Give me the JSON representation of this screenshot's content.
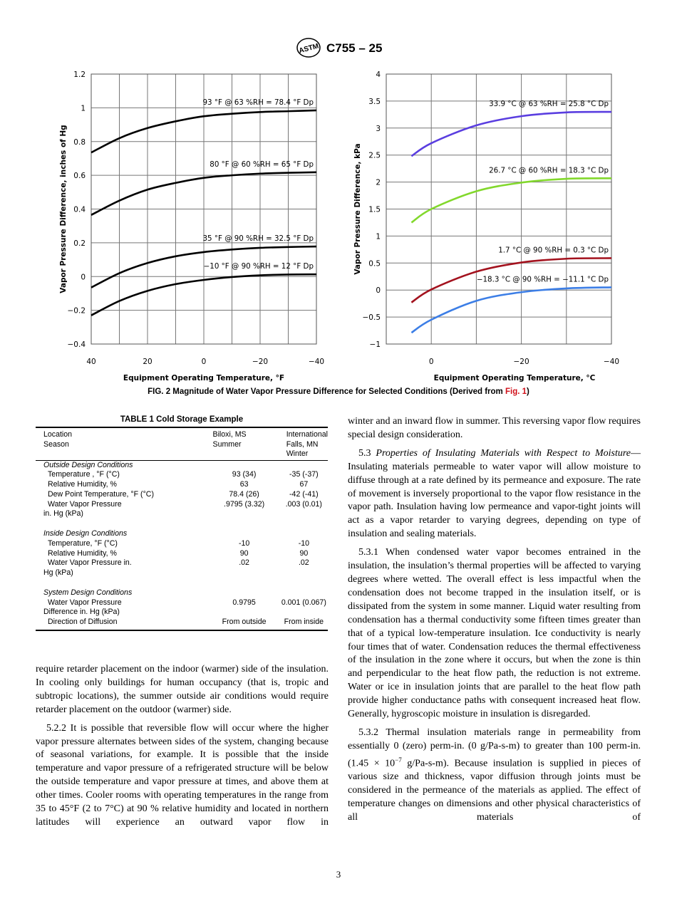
{
  "header": {
    "doc_id": "C755 – 25",
    "logo_text": "ASTM"
  },
  "figure": {
    "caption_a": "FIG. 2 Magnitude of Water Vapor Pressure Difference for Selected Conditions (Derived from ",
    "caption_link": "Fig. 1",
    "caption_b": ")"
  },
  "chart_data": [
    {
      "type": "line",
      "xlabel": "Equipment Operating Temperature, °F",
      "ylabel": "Vapor Pressure Difference, inches of Hg",
      "xlim": [
        40,
        -40
      ],
      "ylim": [
        -0.4,
        1.2
      ],
      "xticks": [
        "40",
        "20",
        "0",
        "−20",
        "−40"
      ],
      "xtick_values": [
        40,
        20,
        0,
        -20,
        -40
      ],
      "yticks": [
        "1.2",
        "1",
        "0.8",
        "0.6",
        "0.4",
        "0.2",
        "0",
        "−0.2",
        "−0.4"
      ],
      "ytick_values": [
        1.2,
        1,
        0.8,
        0.6,
        0.4,
        0.2,
        0,
        -0.2,
        -0.4
      ],
      "grid": true,
      "x": [
        40,
        30,
        20,
        10,
        0,
        -10,
        -20,
        -30,
        -40
      ],
      "series": [
        {
          "name": "93 °F @ 63 %RH = 78.4 °F Dp",
          "color": "#000000",
          "values": [
            0.735,
            0.82,
            0.88,
            0.92,
            0.95,
            0.965,
            0.975,
            0.98,
            0.985
          ]
        },
        {
          "name": "80 °F @ 60 %RH = 65 °F Dp",
          "color": "#000000",
          "values": [
            0.365,
            0.45,
            0.515,
            0.555,
            0.585,
            0.6,
            0.61,
            0.615,
            0.618
          ]
        },
        {
          "name": "35 °F @ 90 %RH = 32.5 °F Dp",
          "color": "#000000",
          "values": [
            -0.065,
            0.02,
            0.08,
            0.12,
            0.145,
            0.16,
            0.17,
            0.175,
            0.178
          ]
        },
        {
          "name": "−10 °F @ 90 %RH = 12 °F Dp",
          "color": "#000000",
          "values": [
            -0.23,
            -0.145,
            -0.085,
            -0.045,
            -0.02,
            -0.003,
            0.007,
            0.012,
            0.013
          ]
        }
      ]
    },
    {
      "type": "line",
      "xlabel": "Equipment Operating Temperature, °C",
      "ylabel": "Vapor Pressure Difference, kPa",
      "xlim": [
        10,
        -40
      ],
      "ylim": [
        -1,
        4
      ],
      "xticks": [
        "0",
        "−20",
        "−40"
      ],
      "xtick_values": [
        0,
        -20,
        -40
      ],
      "yticks": [
        "4",
        "3.5",
        "3",
        "2.5",
        "2",
        "1.5",
        "1",
        "0.5",
        "0",
        "−0.5",
        "−1"
      ],
      "ytick_values": [
        4,
        3.5,
        3,
        2.5,
        2,
        1.5,
        1,
        0.5,
        0,
        -0.5,
        -1
      ],
      "grid": true,
      "x": [
        4.4,
        0,
        -10,
        -20,
        -30,
        -40
      ],
      "series": [
        {
          "name": "33.9 °C @ 63 %RH = 25.8 °C Dp",
          "color": "#5a3ee0",
          "values": [
            2.48,
            2.72,
            3.05,
            3.22,
            3.29,
            3.3
          ]
        },
        {
          "name": "26.7 °C @ 60 %RH = 18.3 °C Dp",
          "color": "#82d82c",
          "values": [
            1.25,
            1.5,
            1.83,
            1.99,
            2.06,
            2.07
          ]
        },
        {
          "name": "1.7 °C @ 90 %RH = 0.3 °C Dp",
          "color": "#a3121e",
          "values": [
            -0.23,
            0.01,
            0.34,
            0.51,
            0.58,
            0.59
          ]
        },
        {
          "name": "−18.3 °C @ 90 %RH = −11.1 °C Dp",
          "color": "#3c7ee6",
          "values": [
            -0.79,
            -0.55,
            -0.2,
            -0.04,
            0.03,
            0.05
          ]
        }
      ]
    }
  ],
  "table": {
    "title": "TABLE 1 Cold Storage Example",
    "header": {
      "label1": "Location",
      "label2": "Season",
      "c2_1": "Biloxi, MS",
      "c2_2": "Summer",
      "c3_1": "International",
      "c3_2": "Falls, MN",
      "c3_3": "Winter"
    },
    "sections": [
      {
        "title": "Outside Design Conditions",
        "rows": [
          {
            "label": "Temperature , °F (°C)",
            "c2": "93 (34)",
            "c3": "-35 (-37)"
          },
          {
            "label": "Relative Humidity, %",
            "c2": "63",
            "c3": "67"
          },
          {
            "label": "Dew Point Temperature, °F (°C)",
            "c2": "78.4 (26)",
            "c3": "-42 (-41)"
          },
          {
            "label": "Water Vapor Pressure",
            "label2": "in. Hg (kPa)",
            "c2": ".9795 (3.32)",
            "c3": ".003 (0.01)"
          }
        ]
      },
      {
        "title": "Inside Design Conditions",
        "rows": [
          {
            "label": "Temperature, °F (°C)",
            "c2": "-10",
            "c3": "-10"
          },
          {
            "label": "Relative Humidity, %",
            "c2": "90",
            "c3": "90"
          },
          {
            "label": "Water Vapor Pressure in.",
            "label2": "Hg (kPa)",
            "c2": ".02",
            "c3": ".02"
          }
        ]
      },
      {
        "title": "System Design Conditions",
        "rows": [
          {
            "label": "Water Vapor Pressure",
            "label2": "Difference in. Hg (kPa)",
            "c2": "0.9795",
            "c3": "0.001 (0.067)"
          },
          {
            "label": "Direction of Diffusion",
            "c2": "From outside",
            "c3": "From inside"
          }
        ]
      }
    ]
  },
  "left_col": {
    "p0": "require retarder placement on the indoor (warmer) side of the insulation. In cooling only buildings for human occupancy (that is, tropic and subtropic locations), the summer outside air conditions would require retarder placement on the outdoor (warmer) side.",
    "p1": "5.2.2 It is possible that reversible flow will occur where the higher vapor pressure alternates between sides of the system, changing because of seasonal variations, for example. It is possible that the inside temperature and vapor pressure of a refrigerated structure will be below the outside temperature and vapor pressure at times, and above them at other times. Cooler rooms with operating temperatures in the range from 35 to 45°F (2 to 7°C) at 90 % relative humidity and located in northern latitudes will experience an outward vapor flow in"
  },
  "right_col": {
    "p0": "winter and an inward flow in summer. This reversing vapor flow requires special design consideration.",
    "p1_num": "5.3 ",
    "p1_title": "Properties of Insulating Materials with Respect to Moisture",
    "p1_body": "—Insulating materials permeable to water vapor will allow moisture to diffuse through at a rate defined by its permeance and exposure. The rate of movement is inversely proportional to the vapor flow resistance in the vapor path. Insulation having low permeance and vapor-tight joints will act as a vapor retarder to varying degrees, depending on type of insulation and sealing materials.",
    "p2": "5.3.1 When condensed water vapor becomes entrained in the insulation, the insulation’s thermal properties will be affected to varying degrees where wetted. The overall effect is less impactful when the condensation does not become trapped in the insulation itself, or is dissipated from the system in some manner. Liquid water resulting from condensation has a thermal conductivity some fifteen times greater than that of a typical low-temperature insulation. Ice conductivity is nearly four times that of water. Condensation reduces the thermal effectiveness of the insulation in the zone where it occurs, but when the zone is thin and perpendicular to the heat flow path, the reduction is not extreme. Water or ice in insulation joints that are parallel to the heat flow path provide higher conductance paths with consequent increased heat flow. Generally, hygroscopic moisture in insulation is disregarded.",
    "p3_a": "5.3.2 Thermal insulation materials range in permeability from essentially 0 (zero) perm-in. (0 g/Pa-s-m) to greater than 100 perm-in. (1.45 × 10",
    "p3_sup": "−7",
    "p3_b": " g/Pa-s-m). Because insulation is supplied in pieces of various size and thickness, vapor diffusion through joints must be considered in the permeance of the materials as applied. The effect of temperature changes on dimensions and other physical characteristics of all materials of"
  },
  "footer": {
    "page_number": "3"
  }
}
